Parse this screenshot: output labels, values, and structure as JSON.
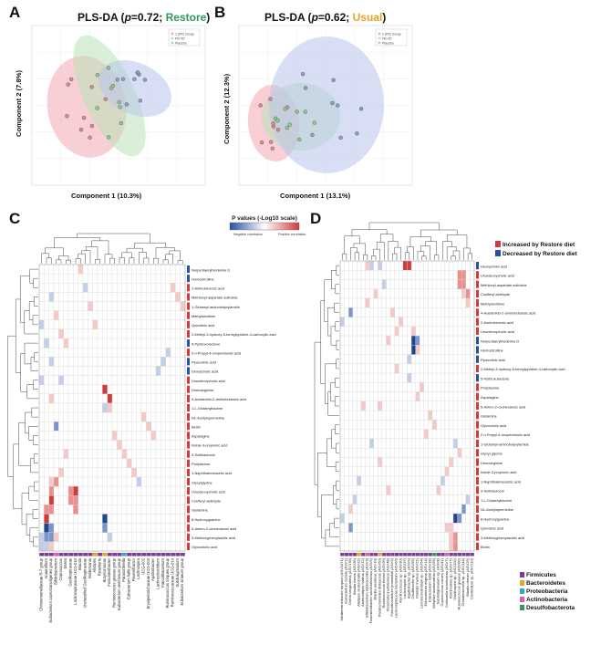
{
  "panels": {
    "A": {
      "letter": "A",
      "title_prefix": "PLS-DA (",
      "title_p": "p",
      "title_eq": "=0.72; ",
      "title_group": "Restore",
      "title_suffix": ")",
      "xlabel": "Component 1 (10.3%)",
      "ylabel": "Component 2  (7.8%)",
      "legend": [
        "1 (FR) Group",
        "FR-VD",
        "Placebo"
      ]
    },
    "B": {
      "letter": "B",
      "title_prefix": "PLS-DA (",
      "title_p": "p",
      "title_eq": "=0.62; ",
      "title_group": "Usual",
      "title_suffix": ")",
      "xlabel": "Component 1 (13.1%)",
      "ylabel": "Component 2  (12.3%)",
      "legend": [
        "1 (FR) Group",
        "FR-VD",
        "Placebo"
      ]
    },
    "C": {
      "letter": "C"
    },
    "D": {
      "letter": "D"
    }
  },
  "colors": {
    "pos": "#d23b3b",
    "neg": "#2a4f9c",
    "restore": "#2e9a5e",
    "usual": "#e8a323",
    "ellipse_red": "#f2a7b0",
    "ellipse_green": "#b9e2b6",
    "ellipse_blue": "#b8c5ec",
    "firmicutes": "#7d3c98",
    "bacteroidetes": "#e8a323",
    "proteobacteria": "#2ea8c9",
    "actinobacteria": "#e35bb0",
    "desulfobacterota": "#2e9a5e"
  },
  "scale_legend": {
    "title": "P values (-Log10 scale)",
    "neg": "Negative correlation",
    "pos": "Positive correlation"
  },
  "diet_legend": {
    "increased": "Increased by Restore diet",
    "decreased": "Decreased by Restore diet"
  },
  "phyla": [
    "Firmicutes",
    "Bacteroidetes",
    "Proteobacteria",
    "Actinobacteria",
    "Desulfobacterota"
  ],
  "heatmapC": {
    "rows": [
      {
        "name": "Norpentaerylhioderine D",
        "dir": "dec"
      },
      {
        "name": "Homocitrulline",
        "dir": "dec"
      },
      {
        "name": "2-Aminobenzoic acid",
        "dir": "inc"
      },
      {
        "name": "Methionyl-aspartate sulfoxide",
        "dir": "inc"
      },
      {
        "name": "1-Glutamyl-aminobutyrylamide",
        "dir": "inc"
      },
      {
        "name": "Methylxanthine",
        "dir": "inc"
      },
      {
        "name": "Quinolinic acid",
        "dir": "inc"
      },
      {
        "name": "2-Methyl-3-hydroxy-5-formylpyridine-4-carboxylic acid",
        "dir": "inc"
      },
      {
        "name": "5-Pyridoxolactone",
        "dir": "dec"
      },
      {
        "name": "2-n-Propyl-4-oxopentanoic acid",
        "dir": "inc"
      },
      {
        "name": "Pipecolinic acid",
        "dir": "dec"
      },
      {
        "name": "Deoxycholic acid",
        "dir": "dec"
      },
      {
        "name": "Ursodeoxycholic acid",
        "dir": "inc"
      },
      {
        "name": "Homoarginine",
        "dir": "inc"
      },
      {
        "name": "4-Acetamido-2-aminobutanoic acid",
        "dir": "inc"
      },
      {
        "name": "1-L-Glutamyltaurine",
        "dir": "inc"
      },
      {
        "name": "N1-Acetylspermidine",
        "dir": "inc"
      },
      {
        "name": "Biotin",
        "dir": "inc"
      },
      {
        "name": "Asparagine",
        "dir": "inc"
      },
      {
        "name": "Indole-3-propionic acid",
        "dir": "inc"
      },
      {
        "name": "3-Sulfolactocal",
        "dir": "inc"
      },
      {
        "name": "Prolylserine",
        "dir": "inc"
      },
      {
        "name": "1-Naphthaleneacetic acid",
        "dir": "inc"
      },
      {
        "name": "Glycylglycine",
        "dir": "inc"
      },
      {
        "name": "Ursodeoxycholic acid",
        "dir": "inc"
      },
      {
        "name": "Coniferyl aldehyde",
        "dir": "inc"
      },
      {
        "name": "Glutamine",
        "dir": "inc"
      },
      {
        "name": "8-Hydroxyguanine",
        "dir": "inc"
      },
      {
        "name": "5-Amino-2-oxohexanoic acid",
        "dir": "inc"
      },
      {
        "name": "3-Methoxyphenylacetic acid",
        "dir": "inc"
      },
      {
        "name": "Glycocholic acid",
        "dir": "inc"
      }
    ],
    "cols": [
      {
        "name": "Christensenellaceae R-7 group",
        "phylum": "firmicutes"
      },
      {
        "name": "Anaerofilum",
        "phylum": "firmicutes"
      },
      {
        "name": "Eubacterium coprostanoligenes group",
        "phylum": "firmicutes"
      },
      {
        "name": "Bifidobacterium",
        "phylum": "actinobacteria"
      },
      {
        "name": "Coprococcus",
        "phylum": "firmicutes"
      },
      {
        "name": "Dorea",
        "phylum": "firmicutes"
      },
      {
        "name": "Oscillospiraceae",
        "phylum": "firmicutes"
      },
      {
        "name": "Lachnospiraceae UCG-010",
        "phylum": "firmicutes"
      },
      {
        "name": "Blautia",
        "phylum": "firmicutes"
      },
      {
        "name": "Unclassified Oscillospiraceae",
        "phylum": "firmicutes"
      },
      {
        "name": "Holdemania",
        "phylum": "firmicutes"
      },
      {
        "name": "Alistipes",
        "phylum": "bacteroidetes"
      },
      {
        "name": "Roseburia",
        "phylum": "firmicutes"
      },
      {
        "name": "Butyricimonas",
        "phylum": "bacteroidetes"
      },
      {
        "name": "Fusicatenibacter",
        "phylum": "firmicutes"
      },
      {
        "name": "Ruminococcus gnavus group",
        "phylum": "firmicutes"
      },
      {
        "name": "Eubacterium ventriosum group",
        "phylum": "firmicutes"
      },
      {
        "name": "Parasutterella",
        "phylum": "proteobacteria"
      },
      {
        "name": "Eubacterium hallii group",
        "phylum": "firmicutes"
      },
      {
        "name": "Flavonifractor",
        "phylum": "firmicutes"
      },
      {
        "name": "Lachnospira",
        "phylum": "firmicutes"
      },
      {
        "name": "UCG-002",
        "phylum": "firmicutes"
      },
      {
        "name": "Erysipelotrichaceae UCG-003",
        "phylum": "firmicutes"
      },
      {
        "name": "Agathobacter",
        "phylum": "firmicutes"
      },
      {
        "name": "Lachnoclostridium",
        "phylum": "firmicutes"
      },
      {
        "name": "Faecalibacterium",
        "phylum": "firmicutes"
      },
      {
        "name": "Ruminococcus torques group",
        "phylum": "firmicutes"
      },
      {
        "name": "Ruminococcaceae UCG-014",
        "phylum": "firmicutes"
      },
      {
        "name": "Subdoligranulum",
        "phylum": "firmicutes"
      },
      {
        "name": "Eubacterium siraeum group",
        "phylum": "firmicutes"
      }
    ],
    "cells": [
      [
        23,
        2,
        1
      ],
      [
        23,
        3,
        2
      ],
      [
        24,
        2,
        2
      ],
      [
        25,
        2,
        3
      ],
      [
        26,
        1,
        2
      ],
      [
        26,
        2,
        2
      ],
      [
        27,
        1,
        3
      ],
      [
        28,
        1,
        -3
      ],
      [
        28,
        2,
        -2
      ],
      [
        29,
        1,
        -2
      ],
      [
        29,
        2,
        -2
      ],
      [
        3,
        2,
        -1
      ],
      [
        5,
        3,
        1
      ],
      [
        7,
        4,
        1
      ],
      [
        8,
        5,
        1
      ],
      [
        12,
        4,
        -1
      ],
      [
        14,
        2,
        1
      ],
      [
        17,
        3,
        -2
      ],
      [
        20,
        5,
        1
      ],
      [
        22,
        4,
        1
      ],
      [
        0,
        8,
        1
      ],
      [
        2,
        9,
        -1
      ],
      [
        4,
        10,
        1
      ],
      [
        6,
        11,
        1
      ],
      [
        24,
        6,
        2
      ],
      [
        25,
        7,
        2
      ],
      [
        24,
        7,
        3
      ],
      [
        25,
        6,
        2
      ],
      [
        26,
        7,
        2
      ],
      [
        27,
        13,
        -3
      ],
      [
        28,
        13,
        -2
      ],
      [
        29,
        14,
        -1
      ],
      [
        13,
        13,
        3
      ],
      [
        14,
        14,
        3
      ],
      [
        15,
        14,
        1
      ],
      [
        15,
        13,
        -1
      ],
      [
        18,
        15,
        1
      ],
      [
        19,
        16,
        1
      ],
      [
        20,
        17,
        1
      ],
      [
        21,
        18,
        1
      ],
      [
        22,
        19,
        1
      ],
      [
        23,
        20,
        -1
      ],
      [
        16,
        21,
        1
      ],
      [
        17,
        22,
        1
      ],
      [
        18,
        23,
        1
      ],
      [
        11,
        24,
        -1
      ],
      [
        10,
        25,
        -1
      ],
      [
        9,
        26,
        -1
      ],
      [
        2,
        27,
        1
      ],
      [
        3,
        28,
        1
      ],
      [
        4,
        29,
        1
      ],
      [
        6,
        0,
        -1
      ],
      [
        8,
        1,
        -1
      ],
      [
        10,
        2,
        -1
      ],
      [
        12,
        0,
        -1
      ],
      [
        29,
        0,
        -1
      ],
      [
        30,
        0,
        -1
      ],
      [
        30,
        1,
        -1
      ],
      [
        29,
        3,
        1
      ],
      [
        30,
        2,
        1
      ]
    ]
  },
  "heatmapD": {
    "rows": [
      {
        "name": "Deoxycholic acid",
        "dir": "dec"
      },
      {
        "name": "Ursodeoxycholic acid",
        "dir": "inc"
      },
      {
        "name": "Methionyl-aspartate sulfoxide",
        "dir": "inc"
      },
      {
        "name": "Coniferyl aldehyde",
        "dir": "inc"
      },
      {
        "name": "Methylxanthine",
        "dir": "inc"
      },
      {
        "name": "4-Acetamido-2-aminobutanoic acid",
        "dir": "inc"
      },
      {
        "name": "2-Aminobenzoic acid",
        "dir": "inc"
      },
      {
        "name": "Ursodeoxycholic acid",
        "dir": "inc"
      },
      {
        "name": "Norpentaerylhioderine D",
        "dir": "dec"
      },
      {
        "name": "Homocitrulline",
        "dir": "dec"
      },
      {
        "name": "Pipecolinic acid",
        "dir": "dec"
      },
      {
        "name": "2-Methyl-3-hydroxy-5-formylpyridine-4-carboxylic acid",
        "dir": "inc"
      },
      {
        "name": "5-Pyridoxolactone",
        "dir": "dec"
      },
      {
        "name": "Prolylserine",
        "dir": "inc"
      },
      {
        "name": "Asparagine",
        "dir": "inc"
      },
      {
        "name": "5-Amino-2-oxohexanoic acid",
        "dir": "inc"
      },
      {
        "name": "Glutamine",
        "dir": "inc"
      },
      {
        "name": "Glycocholic acid",
        "dir": "inc"
      },
      {
        "name": "2-n-Propyl-4-oxopentanoic acid",
        "dir": "inc"
      },
      {
        "name": "1-Glutamyl-aminobutyrylamide",
        "dir": "inc"
      },
      {
        "name": "Glycyl glycine",
        "dir": "inc"
      },
      {
        "name": "Homoarginine",
        "dir": "inc"
      },
      {
        "name": "Indole-3-propionic acid",
        "dir": "inc"
      },
      {
        "name": "1-Naphthaleneacetic acid",
        "dir": "inc"
      },
      {
        "name": "3-Sulfolactocal",
        "dir": "inc"
      },
      {
        "name": "1-L-Glutamyltaurine",
        "dir": "inc"
      },
      {
        "name": "N1-Acetylspermidine",
        "dir": "inc"
      },
      {
        "name": "8-Hydroxyguanine",
        "dir": "inc"
      },
      {
        "name": "Quinolinic acid",
        "dir": "inc"
      },
      {
        "name": "3-Methoxyphenylacetic acid",
        "dir": "inc"
      },
      {
        "name": "Biotin",
        "dir": "inc"
      }
    ],
    "cols": [
      {
        "name": "Mediterraneibacter torques (ASV1071)",
        "phylum": "firmicutes"
      },
      {
        "name": "Eubacterium rectale (ASV1)",
        "phylum": "firmicutes"
      },
      {
        "name": "Dorea longicatena (ASV178)",
        "phylum": "firmicutes"
      },
      {
        "name": "Blautia faecis (ASV36)",
        "phylum": "firmicutes"
      },
      {
        "name": "Alistipes onderdonkii (ASV22)",
        "phylum": "bacteroidetes"
      },
      {
        "name": "Anaerostipes hadrus (ASV12)",
        "phylum": "firmicutes"
      },
      {
        "name": "Bifidobacterium adolescentis (ASV3)",
        "phylum": "actinobacteria"
      },
      {
        "name": "Fusicatenibacter saccharivorans (ASV5)",
        "phylum": "firmicutes"
      },
      {
        "name": "Blautia wexlerae (ASV10)",
        "phylum": "firmicutes"
      },
      {
        "name": "Parabacteroides distasonis (ASV50)",
        "phylum": "bacteroidetes"
      },
      {
        "name": "Ruminococcus bromii (ASV26)",
        "phylum": "firmicutes"
      },
      {
        "name": "Roseburia inulinivorans (ASV48)",
        "phylum": "firmicutes"
      },
      {
        "name": "Faecalibacterium prausnitzii (ASV4)",
        "phylum": "firmicutes"
      },
      {
        "name": "Lachnospiraceae bacterium (ASV63)",
        "phylum": "firmicutes"
      },
      {
        "name": "Ruminococcus sp. (ASV30)",
        "phylum": "firmicutes"
      },
      {
        "name": "Lachnospira sp. (ASV37)",
        "phylum": "firmicutes"
      },
      {
        "name": "Agathobacter sp. (ASV9)",
        "phylum": "firmicutes"
      },
      {
        "name": "Oscillibacter sp. (ASV95)",
        "phylum": "firmicutes"
      },
      {
        "name": "Dialister invisus (ASV21)",
        "phylum": "firmicutes"
      },
      {
        "name": "Lachnoclostridium sp. (ASV54)",
        "phylum": "firmicutes"
      },
      {
        "name": "Eubacterium eligens (ASV14)",
        "phylum": "firmicutes"
      },
      {
        "name": "Eubacterium hallii (ASV18)",
        "phylum": "firmicutes"
      },
      {
        "name": "Bilophila wadsworthia (ASV99)",
        "phylum": "desulfobacterota"
      },
      {
        "name": "Subdoligranulum sp. (ASV8)",
        "phylum": "firmicutes"
      },
      {
        "name": "Coprococcus comes (ASV41)",
        "phylum": "firmicutes"
      },
      {
        "name": "Collinsella aerofaciens (ASV7)",
        "phylum": "actinobacteria"
      },
      {
        "name": "Romboutsia sp. (ASV77)",
        "phylum": "firmicutes"
      },
      {
        "name": "Oscillospira sp. (ASV102)",
        "phylum": "firmicutes"
      },
      {
        "name": "Ruminococcus gnavus (ASV66)",
        "phylum": "firmicutes"
      },
      {
        "name": "Christensenella sp. (ASV144)",
        "phylum": "firmicutes"
      },
      {
        "name": "Blautia obeum (ASV29)",
        "phylum": "firmicutes"
      },
      {
        "name": "Clostridium sp. (ASV210)",
        "phylum": "firmicutes"
      }
    ],
    "cells": [
      [
        0,
        6,
        1
      ],
      [
        0,
        7,
        -1
      ],
      [
        0,
        9,
        -1
      ],
      [
        0,
        15,
        3
      ],
      [
        0,
        16,
        3
      ],
      [
        1,
        28,
        2
      ],
      [
        1,
        29,
        2
      ],
      [
        2,
        28,
        2
      ],
      [
        2,
        29,
        2
      ],
      [
        3,
        30,
        2
      ],
      [
        3,
        29,
        1
      ],
      [
        4,
        30,
        1
      ],
      [
        5,
        2,
        -2
      ],
      [
        6,
        0,
        -1
      ],
      [
        7,
        17,
        1
      ],
      [
        8,
        17,
        -3
      ],
      [
        9,
        17,
        -3
      ],
      [
        8,
        18,
        -2
      ],
      [
        9,
        18,
        1
      ],
      [
        10,
        16,
        -1
      ],
      [
        11,
        13,
        1
      ],
      [
        12,
        16,
        -1
      ],
      [
        6,
        14,
        1
      ],
      [
        7,
        13,
        1
      ],
      [
        8,
        11,
        1
      ],
      [
        5,
        12,
        1
      ],
      [
        13,
        19,
        1
      ],
      [
        14,
        18,
        1
      ],
      [
        15,
        9,
        1
      ],
      [
        16,
        21,
        1
      ],
      [
        17,
        22,
        1
      ],
      [
        18,
        20,
        1
      ],
      [
        19,
        27,
        -1
      ],
      [
        20,
        28,
        1
      ],
      [
        21,
        26,
        1
      ],
      [
        22,
        25,
        1
      ],
      [
        23,
        24,
        -1
      ],
      [
        24,
        23,
        1
      ],
      [
        25,
        30,
        -1
      ],
      [
        26,
        29,
        -2
      ],
      [
        27,
        27,
        -3
      ],
      [
        27,
        28,
        -2
      ],
      [
        28,
        25,
        1
      ],
      [
        28,
        26,
        1
      ],
      [
        29,
        26,
        1
      ],
      [
        29,
        27,
        2
      ],
      [
        30,
        26,
        1
      ],
      [
        30,
        27,
        2
      ],
      [
        23,
        4,
        -1
      ],
      [
        25,
        3,
        -1
      ],
      [
        26,
        2,
        1
      ],
      [
        27,
        0,
        -1
      ],
      [
        28,
        2,
        -2
      ],
      [
        4,
        6,
        1
      ],
      [
        3,
        8,
        1
      ],
      [
        2,
        10,
        -1
      ],
      [
        15,
        5,
        1
      ],
      [
        19,
        7,
        -1
      ],
      [
        21,
        9,
        1
      ],
      [
        24,
        11,
        1
      ]
    ]
  }
}
